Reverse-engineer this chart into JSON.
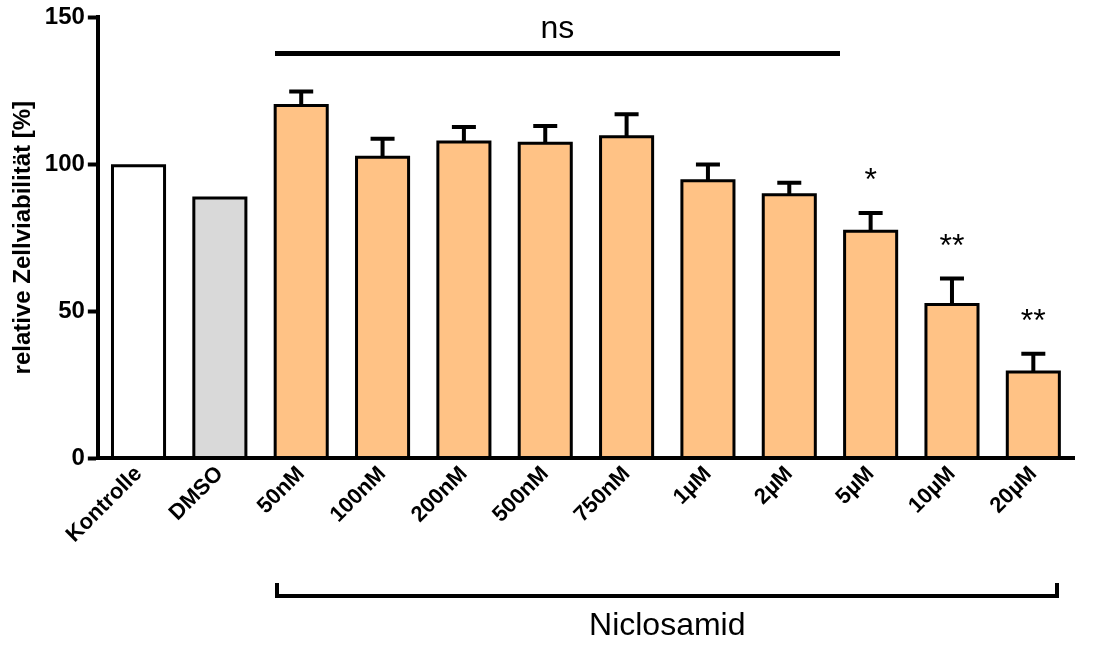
{
  "chart_data": {
    "type": "bar",
    "ylabel": "relative Zellviabilität [%]",
    "categories": [
      "Kontrolle",
      "DMSO",
      "50nM",
      "100nM",
      "200nM",
      "500nM",
      "750nM",
      "1µM",
      "2µM",
      "5µM",
      "10µM",
      "20µM"
    ],
    "values": [
      99.5,
      88.5,
      120,
      102.4,
      107.6,
      107.2,
      109.4,
      94.4,
      89.6,
      77.2,
      52.3,
      29.3
    ],
    "colors": [
      "#ffffff",
      "#d9d9d9",
      "#ffc285",
      "#ffc285",
      "#ffc285",
      "#ffc285",
      "#ffc285",
      "#ffc285",
      "#ffc285",
      "#ffc285",
      "#ffc285",
      "#ffc285"
    ],
    "errors": [
      null,
      null,
      [
        120,
        124.8
      ],
      [
        102.4,
        108.7
      ],
      [
        107.6,
        112.7
      ],
      [
        107.2,
        113
      ],
      [
        109.4,
        117
      ],
      [
        94.4,
        99.9
      ],
      [
        89.6,
        93.7
      ],
      [
        77.2,
        83.4
      ],
      [
        52.3,
        61.1
      ],
      [
        29.3,
        35.5
      ]
    ],
    "ylim": [
      0,
      150
    ],
    "yticks": [
      0,
      50,
      100,
      150
    ],
    "grid": false,
    "annotations": [
      "ns",
      "*",
      "**",
      "**",
      "Niclosamid"
    ]
  }
}
